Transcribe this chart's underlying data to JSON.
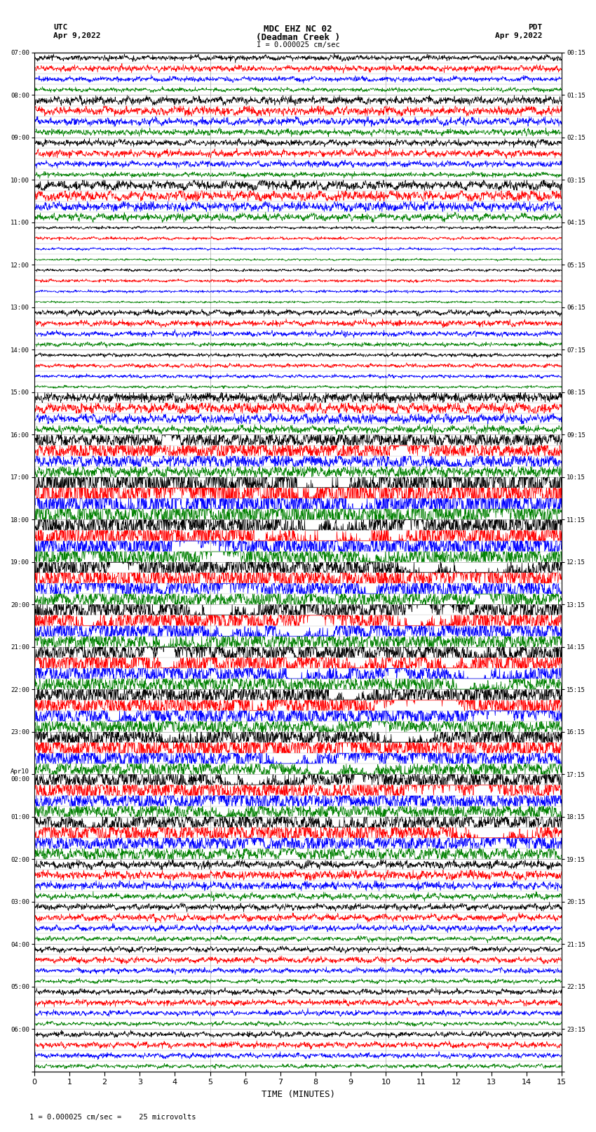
{
  "title_line1": "MDC EHZ NC 02",
  "title_line2": "(Deadman Creek )",
  "title_line3": "I = 0.000025 cm/sec",
  "left_header_line1": "UTC",
  "left_header_line2": "Apr 9,2022",
  "right_header_line1": "PDT",
  "right_header_line2": "Apr 9,2022",
  "xlabel": "TIME (MINUTES)",
  "footer": "1 = 0.000025 cm/sec =    25 microvolts",
  "background_color": "#ffffff",
  "trace_colors": [
    "black",
    "red",
    "blue",
    "green"
  ],
  "num_rows": 24,
  "utc_labels": [
    "07:00",
    "08:00",
    "09:00",
    "10:00",
    "11:00",
    "12:00",
    "13:00",
    "14:00",
    "15:00",
    "16:00",
    "17:00",
    "18:00",
    "19:00",
    "20:00",
    "21:00",
    "22:00",
    "23:00",
    "Apr10\n00:00",
    "01:00",
    "02:00",
    "03:00",
    "04:00",
    "05:00",
    "06:00"
  ],
  "pdt_labels": [
    "00:15",
    "01:15",
    "02:15",
    "03:15",
    "04:15",
    "05:15",
    "06:15",
    "07:15",
    "08:15",
    "09:15",
    "10:15",
    "11:15",
    "12:15",
    "13:15",
    "14:15",
    "15:15",
    "16:15",
    "17:15",
    "18:15",
    "19:15",
    "20:15",
    "21:15",
    "22:15",
    "23:15"
  ],
  "xmin": 0,
  "xmax": 15,
  "xticks": [
    0,
    1,
    2,
    3,
    4,
    5,
    6,
    7,
    8,
    9,
    10,
    11,
    12,
    13,
    14,
    15
  ],
  "noise_scales": [
    0.12,
    0.18,
    0.14,
    0.22,
    0.06,
    0.06,
    0.12,
    0.08,
    0.22,
    0.35,
    0.8,
    0.65,
    0.55,
    0.55,
    0.52,
    0.5,
    0.48,
    0.45,
    0.42,
    0.18,
    0.14,
    0.12,
    0.12,
    0.12
  ],
  "grid_color": "#999999",
  "vgrid_color": "#999999",
  "trace_lw": 0.5,
  "fig_width": 8.5,
  "fig_height": 16.13,
  "dpi": 100
}
